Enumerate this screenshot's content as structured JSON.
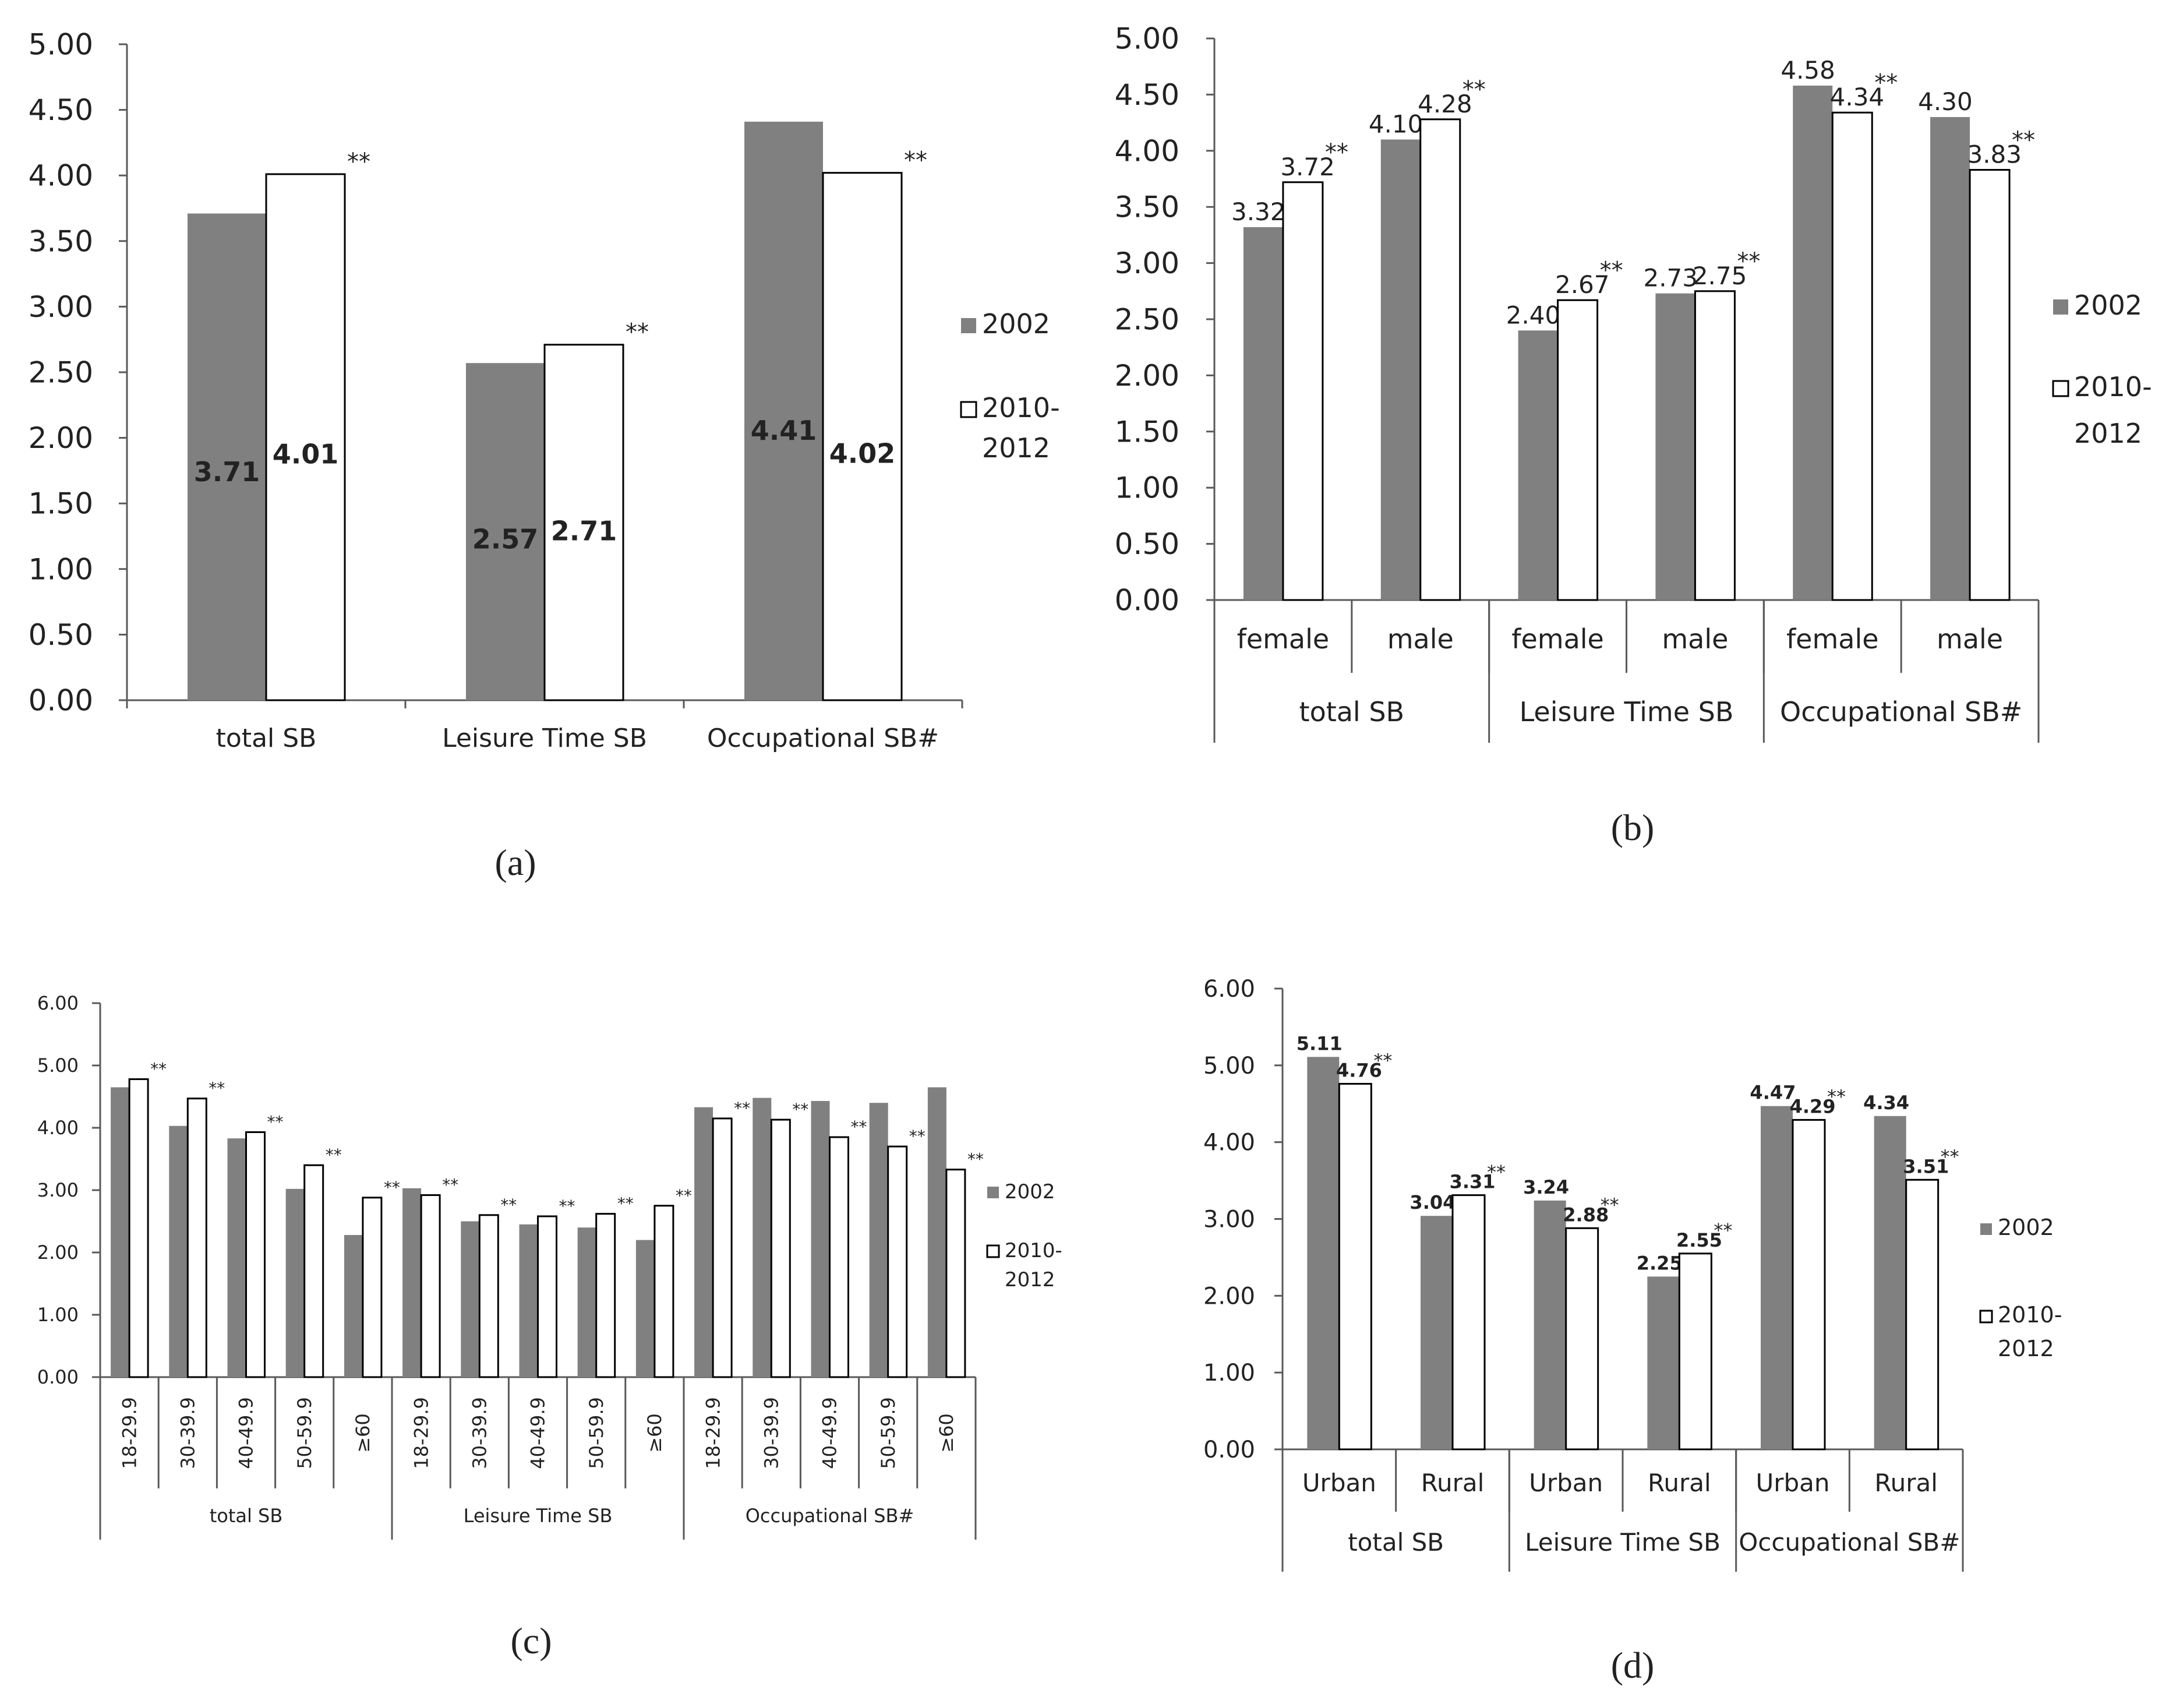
{
  "colors": {
    "bar2002": "#808080",
    "bar2010": "#ffffff",
    "barStroke": "#000000",
    "axis": "#595959",
    "text": "#222222",
    "label2002": "#ffffff"
  },
  "chart_data": [
    {
      "id": "a",
      "type": "bar",
      "panel_label": "(a)",
      "group_labels": [
        "total SB",
        "Leisure Time SB",
        "Occupational SB#"
      ],
      "series": [
        {
          "name": "2002",
          "values": [
            3.71,
            2.57,
            4.41
          ],
          "labels": [
            "3.71",
            "2.57",
            "4.41"
          ]
        },
        {
          "name": "2010-2012",
          "values": [
            4.01,
            2.71,
            4.02
          ],
          "labels": [
            "4.01",
            "2.71",
            "4.02"
          ]
        }
      ],
      "significance": [
        "**",
        "**",
        "**"
      ],
      "ylim": [
        0,
        5
      ],
      "yticks": [
        "0.00",
        "0.50",
        "1.00",
        "1.50",
        "2.00",
        "2.50",
        "3.00",
        "3.50",
        "4.00",
        "4.50",
        "5.00"
      ],
      "legend": {
        "entries": [
          "2002",
          "2010-",
          "2012"
        ]
      }
    },
    {
      "id": "b",
      "type": "bar",
      "panel_label": "(b)",
      "categories": [
        "female",
        "male",
        "female",
        "male",
        "female",
        "male"
      ],
      "groups": [
        {
          "label": "total SB",
          "span": 2
        },
        {
          "label": "Leisure Time SB",
          "span": 2
        },
        {
          "label": "Occupational SB#",
          "span": 2
        }
      ],
      "series": [
        {
          "name": "2002",
          "values": [
            3.32,
            4.1,
            2.4,
            2.73,
            4.58,
            4.3
          ],
          "labels": [
            "3.32",
            "4.10",
            "2.40",
            "2.73",
            "4.58",
            "4.30"
          ]
        },
        {
          "name": "2010-2012",
          "values": [
            3.72,
            4.28,
            2.67,
            2.75,
            4.34,
            3.83
          ],
          "labels": [
            "3.72",
            "4.28",
            "2.67",
            "2.75",
            "4.34",
            "3.83"
          ]
        }
      ],
      "significance": [
        "**",
        "**",
        "**",
        "**",
        "**",
        "**"
      ],
      "ylim": [
        0,
        5
      ],
      "yticks": [
        "0.00",
        "0.50",
        "1.00",
        "1.50",
        "2.00",
        "2.50",
        "3.00",
        "3.50",
        "4.00",
        "4.50",
        "5.00"
      ],
      "legend": {
        "entries": [
          "2002",
          "2010-",
          "2012"
        ]
      }
    },
    {
      "id": "c",
      "type": "bar",
      "panel_label": "(c)",
      "categories": [
        "18-29.9",
        "30-39.9",
        "40-49.9",
        "50-59.9",
        "≥60",
        "18-29.9",
        "30-39.9",
        "40-49.9",
        "50-59.9",
        "≥60",
        "18-29.9",
        "30-39.9",
        "40-49.9",
        "50-59.9",
        "≥60"
      ],
      "groups": [
        {
          "label": "total SB",
          "span": 5
        },
        {
          "label": "Leisure Time SB",
          "span": 5
        },
        {
          "label": "Occupational SB#",
          "span": 5
        }
      ],
      "series": [
        {
          "name": "2002",
          "values": [
            4.65,
            4.03,
            3.83,
            3.02,
            2.28,
            3.03,
            2.5,
            2.45,
            2.4,
            2.2,
            4.33,
            4.48,
            4.43,
            4.4,
            4.65
          ]
        },
        {
          "name": "2010-2012",
          "values": [
            4.78,
            4.47,
            3.93,
            3.4,
            2.88,
            2.92,
            2.6,
            2.58,
            2.62,
            2.75,
            4.15,
            4.13,
            3.85,
            3.7,
            3.33
          ]
        }
      ],
      "significance": [
        "**",
        "**",
        "**",
        "**",
        "**",
        "**",
        "**",
        "**",
        "**",
        "**",
        "**",
        "**",
        "**",
        "**",
        "**"
      ],
      "ylim": [
        0,
        6
      ],
      "yticks": [
        "0.00",
        "1.00",
        "2.00",
        "3.00",
        "4.00",
        "5.00",
        "6.00"
      ],
      "legend": {
        "entries": [
          "2002",
          "2010-",
          "2012"
        ]
      }
    },
    {
      "id": "d",
      "type": "bar",
      "panel_label": "(d)",
      "categories": [
        "Urban",
        "Rural",
        "Urban",
        "Rural",
        "Urban",
        "Rural"
      ],
      "groups": [
        {
          "label": "total SB",
          "span": 2
        },
        {
          "label": "Leisure Time SB",
          "span": 2
        },
        {
          "label": "Occupational SB#",
          "span": 2
        }
      ],
      "series": [
        {
          "name": "2002",
          "values": [
            5.11,
            3.04,
            3.24,
            2.25,
            4.47,
            4.34
          ],
          "labels": [
            "5.11",
            "3.04",
            "3.24",
            "2.25",
            "4.47",
            "4.34"
          ]
        },
        {
          "name": "2010-2012",
          "values": [
            4.76,
            3.31,
            2.88,
            2.55,
            4.29,
            3.51
          ],
          "labels": [
            "4.76",
            "3.31",
            "2.88",
            "2.55",
            "4.29",
            "3.51"
          ]
        }
      ],
      "significance": [
        "**",
        "**",
        "**",
        "**",
        "**",
        "**"
      ],
      "ylim": [
        0,
        6
      ],
      "yticks": [
        "0.00",
        "1.00",
        "2.00",
        "3.00",
        "4.00",
        "5.00",
        "6.00"
      ],
      "legend": {
        "entries": [
          "2002",
          "2010-",
          "2012"
        ]
      }
    }
  ]
}
